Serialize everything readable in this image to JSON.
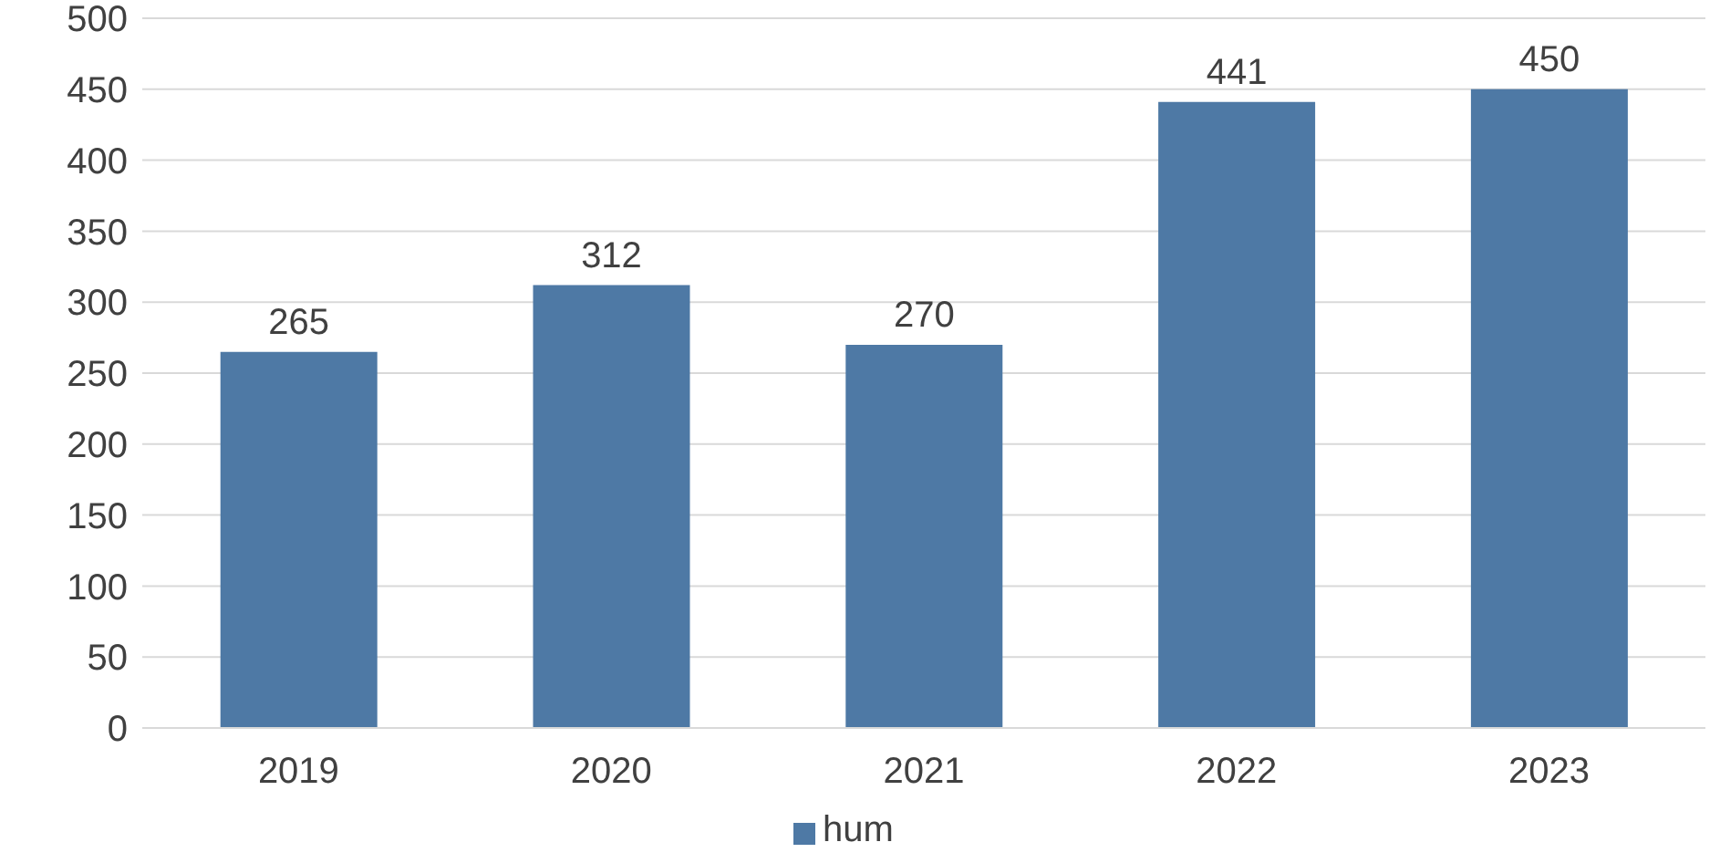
{
  "chart_data": {
    "type": "bar",
    "categories": [
      "2019",
      "2020",
      "2021",
      "2022",
      "2023"
    ],
    "series": [
      {
        "name": "hum",
        "color": "#4e79a5",
        "values": [
          265,
          312,
          270,
          441,
          450
        ]
      }
    ],
    "ylim": [
      0,
      500
    ],
    "yticks": [
      0,
      50,
      100,
      150,
      200,
      250,
      300,
      350,
      400,
      450,
      500
    ],
    "grid": "y",
    "legend": "bottom",
    "data_labels": true
  }
}
